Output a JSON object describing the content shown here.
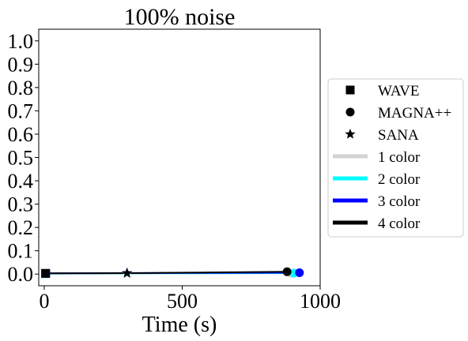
{
  "chart_data": {
    "type": "line",
    "title": "100% noise",
    "xlabel": "Time (s)",
    "ylabel": "",
    "xlim": [
      -20,
      1000
    ],
    "ylim": [
      -0.05,
      1.05
    ],
    "x_ticks": [
      0,
      500,
      1000
    ],
    "y_ticks": [
      0.0,
      0.1,
      0.2,
      0.3,
      0.4,
      0.5,
      0.6,
      0.7,
      0.8,
      0.9,
      1.0
    ],
    "grid": false,
    "legend_position": "right, outside plot",
    "series": [
      {
        "name": "1 color",
        "color": "#d3d3d3",
        "points": [
          {
            "method": "WAVE",
            "x": 5,
            "y": 0.002
          },
          {
            "method": "SANA",
            "x": 300,
            "y": 0.002
          },
          {
            "method": "MAGNA++",
            "x": 895,
            "y": 0.003
          }
        ]
      },
      {
        "name": "2 color",
        "color": "#00ffff",
        "points": [
          {
            "method": "WAVE",
            "x": 5,
            "y": 0.002
          },
          {
            "method": "SANA",
            "x": 300,
            "y": 0.003
          },
          {
            "method": "MAGNA++",
            "x": 905,
            "y": 0.004
          }
        ]
      },
      {
        "name": "3 color",
        "color": "#0000ff",
        "points": [
          {
            "method": "WAVE",
            "x": 5,
            "y": 0.003
          },
          {
            "method": "SANA",
            "x": 300,
            "y": 0.004
          },
          {
            "method": "MAGNA++",
            "x": 925,
            "y": 0.006
          }
        ]
      },
      {
        "name": "4 color",
        "color": "#000000",
        "points": [
          {
            "method": "WAVE",
            "x": 5,
            "y": 0.003
          },
          {
            "method": "SANA",
            "x": 300,
            "y": 0.004
          },
          {
            "method": "MAGNA++",
            "x": 880,
            "y": 0.01
          }
        ]
      }
    ],
    "marker_legend": [
      {
        "method": "WAVE",
        "marker": "square"
      },
      {
        "method": "MAGNA++",
        "marker": "circle"
      },
      {
        "method": "SANA",
        "marker": "star"
      }
    ]
  }
}
